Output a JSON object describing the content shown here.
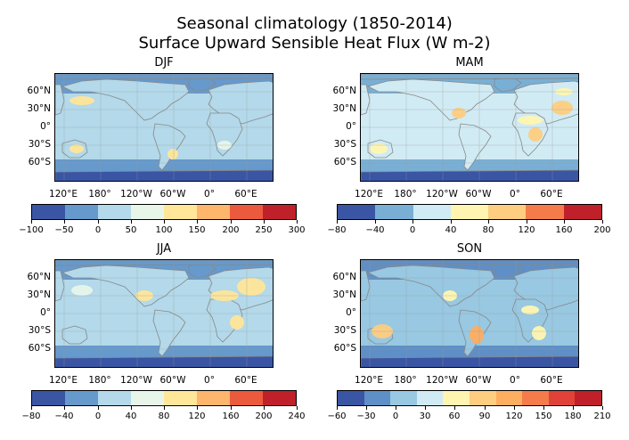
{
  "figure": {
    "title_line1": "Seasonal climatology  (1850-2014)",
    "title_line2": "Surface Upward Sensible Heat Flux (W m-2)"
  },
  "chart_data": [
    {
      "type": "heatmap",
      "title": "DJF",
      "lat_ticks": [
        "60°N",
        "30°N",
        "0°",
        "30°S",
        "60°S"
      ],
      "lon_ticks": [
        "120°E",
        "180°",
        "120°W",
        "60°W",
        "0°",
        "60°E"
      ],
      "colorbar_ticks": [
        "−100",
        "−50",
        "0",
        "50",
        "100",
        "150",
        "200",
        "250",
        "300"
      ],
      "colorbar_colors": [
        "#3a55a3",
        "#6699cc",
        "#b3d9ea",
        "#e8f6ea",
        "#ffe699",
        "#fdb66b",
        "#eb5a3c",
        "#c0202a"
      ],
      "ocean_color": "#b3d9ea",
      "high_lat_color": "#6699cc"
    },
    {
      "type": "heatmap",
      "title": "MAM",
      "lat_ticks": [
        "60°N",
        "30°N",
        "0°",
        "30°S",
        "60°S"
      ],
      "lon_ticks": [
        "120°E",
        "180°",
        "120°W",
        "60°W",
        "0°",
        "60°E"
      ],
      "colorbar_ticks": [
        "−80",
        "−40",
        "0",
        "40",
        "80",
        "120",
        "160",
        "200"
      ],
      "colorbar_colors": [
        "#3a55a3",
        "#79afd4",
        "#d1ebf4",
        "#fff5b0",
        "#fdcd80",
        "#f57b4a",
        "#c0202a"
      ],
      "ocean_color": "#d1ebf4",
      "high_lat_color": "#79afd4"
    },
    {
      "type": "heatmap",
      "title": "JJA",
      "lat_ticks": [
        "60°N",
        "30°N",
        "0°",
        "30°S",
        "60°S"
      ],
      "lon_ticks": [
        "120°E",
        "180°",
        "120°W",
        "60°W",
        "0°",
        "60°E"
      ],
      "colorbar_ticks": [
        "−80",
        "−40",
        "0",
        "40",
        "80",
        "120",
        "160",
        "200",
        "240"
      ],
      "colorbar_colors": [
        "#3a55a3",
        "#6699cc",
        "#b3d9ea",
        "#e8f6ea",
        "#ffe699",
        "#fdb66b",
        "#eb5a3c",
        "#c0202a"
      ],
      "ocean_color": "#b3d9ea",
      "high_lat_color": "#6699cc"
    },
    {
      "type": "heatmap",
      "title": "SON",
      "lat_ticks": [
        "60°N",
        "30°N",
        "0°",
        "30°S",
        "60°S"
      ],
      "lon_ticks": [
        "120°E",
        "180°",
        "120°W",
        "60°W",
        "0°",
        "60°E"
      ],
      "colorbar_ticks": [
        "−60",
        "−30",
        "0",
        "30",
        "60",
        "90",
        "120",
        "150",
        "180",
        "210"
      ],
      "colorbar_colors": [
        "#3a55a3",
        "#5e8fc7",
        "#98c8e2",
        "#d1ebf4",
        "#fff5b0",
        "#fdcd80",
        "#fdae61",
        "#f57b4a",
        "#e0423a",
        "#c0202a"
      ],
      "ocean_color": "#98c8e2",
      "high_lat_color": "#5e8fc7"
    }
  ]
}
